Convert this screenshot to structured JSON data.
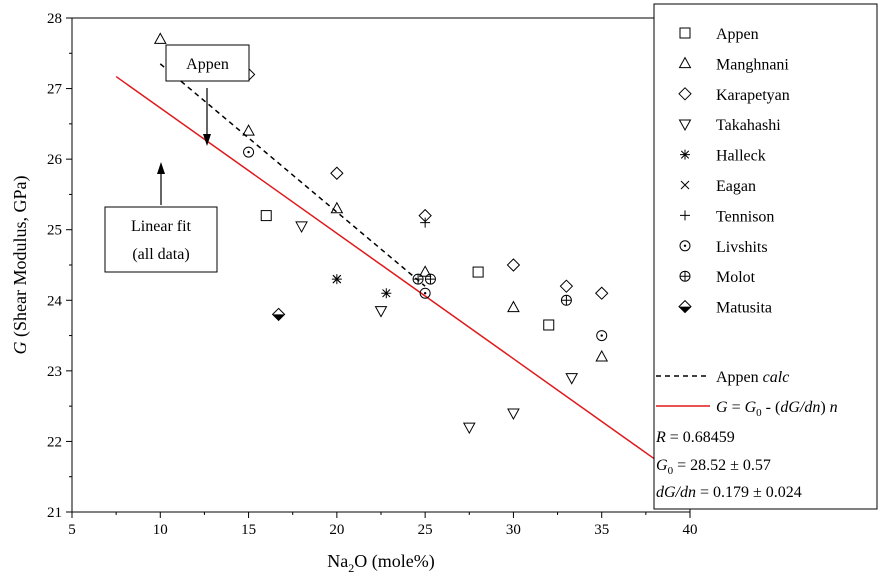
{
  "chart_data": {
    "type": "scatter",
    "title": "",
    "xlabel": {
      "main": "Na",
      "sub": "2",
      "rest": "O (mole%)"
    },
    "ylabel": {
      "italic": "G",
      "rest": " (Shear Modulus, GPa)"
    },
    "xlim": [
      5,
      40
    ],
    "ylim": [
      21,
      28
    ],
    "x_ticks": [
      5,
      10,
      15,
      20,
      25,
      30,
      35,
      40
    ],
    "y_ticks": [
      21,
      22,
      23,
      24,
      25,
      26,
      27,
      28
    ],
    "grid": false,
    "legend_position": "right",
    "series": [
      {
        "name": "Appen",
        "marker": "square",
        "points": [
          [
            16,
            25.2
          ],
          [
            28,
            24.4
          ],
          [
            32,
            23.65
          ]
        ]
      },
      {
        "name": "Manghnani",
        "marker": "triangle-up",
        "points": [
          [
            10,
            27.7
          ],
          [
            15,
            26.4
          ],
          [
            20,
            25.3
          ],
          [
            25,
            24.4
          ],
          [
            30,
            23.9
          ],
          [
            35,
            23.2
          ]
        ]
      },
      {
        "name": "Karapetyan",
        "marker": "diamond",
        "points": [
          [
            15,
            27.2
          ],
          [
            20,
            25.8
          ],
          [
            25,
            25.2
          ],
          [
            30,
            24.5
          ],
          [
            33,
            24.2
          ],
          [
            35,
            24.1
          ]
        ]
      },
      {
        "name": "Takahashi",
        "marker": "triangle-down",
        "points": [
          [
            18,
            25.05
          ],
          [
            22.5,
            23.85
          ],
          [
            27.5,
            22.2
          ],
          [
            30,
            22.4
          ],
          [
            33.3,
            22.9
          ]
        ]
      },
      {
        "name": "Halleck",
        "marker": "asterisk",
        "points": [
          [
            20,
            24.3
          ],
          [
            22.8,
            24.1
          ]
        ]
      },
      {
        "name": "Eagan",
        "marker": "x",
        "points": [
          [
            20,
            24.3
          ]
        ]
      },
      {
        "name": "Tennison",
        "marker": "plus",
        "points": [
          [
            25,
            25.1
          ]
        ]
      },
      {
        "name": "Livshits",
        "marker": "circle-dot",
        "points": [
          [
            15,
            26.1
          ],
          [
            25,
            24.1
          ],
          [
            35,
            23.5
          ]
        ]
      },
      {
        "name": "Molot",
        "marker": "circle-plus",
        "points": [
          [
            24.6,
            24.3
          ],
          [
            25.3,
            24.3
          ],
          [
            33,
            24.0
          ]
        ]
      },
      {
        "name": "Matusita",
        "marker": "diamond-half",
        "points": [
          [
            16.7,
            23.8
          ]
        ]
      }
    ],
    "lines": [
      {
        "name_prefix": "Appen ",
        "name_italic": "calc",
        "style": "dashed",
        "color": "#000000",
        "x": [
          10,
          25
        ],
        "y": [
          27.35,
          24.2
        ]
      },
      {
        "name_formula": true,
        "style": "solid",
        "color": "#e0191b",
        "x": [
          7.5,
          38
        ],
        "y": [
          27.17,
          21.75
        ]
      }
    ],
    "stats": {
      "R_label": "R",
      "R_value": " = 0.68459",
      "G0_label": "G",
      "G0_sub": "0",
      "G0_value": " = 28.52 ± 0.57",
      "slope_label": "dG/dn",
      "slope_value": " = 0.179 ± 0.024"
    },
    "formula": {
      "g": "G",
      "eq": " = ",
      "g0": "G",
      "g0sub": "0",
      "mid": " - (",
      "dgdn": "dG/dn",
      "close": ") ",
      "n": "n"
    },
    "annotations": [
      {
        "id": "appen",
        "text_lines": [
          "Appen"
        ],
        "point_x": 12.6,
        "point_y": 26.85
      },
      {
        "id": "fit",
        "text_lines": [
          "Linear fit",
          "(all data)"
        ],
        "point_x": 12.6,
        "point_y": 26.4
      }
    ]
  }
}
